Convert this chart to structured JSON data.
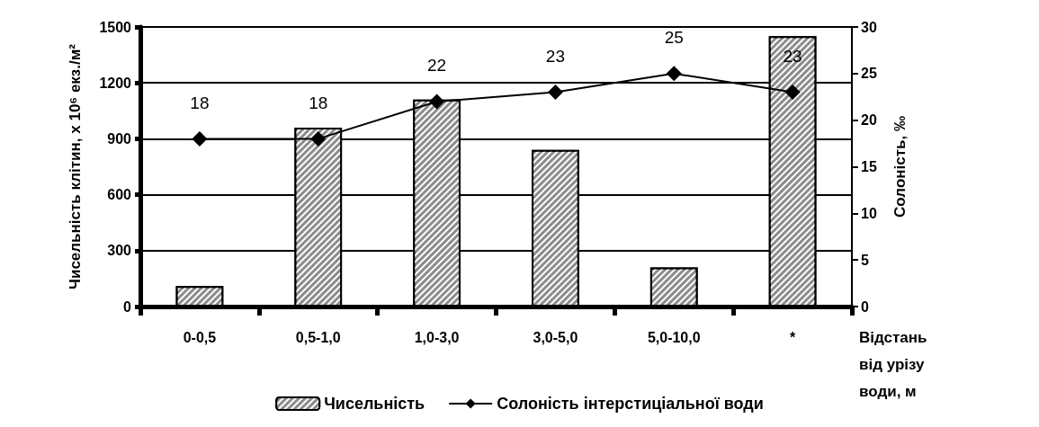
{
  "chart_data": {
    "type": "bar",
    "categories": [
      "0-0,5",
      "0,5-1,0",
      "1,0-3,0",
      "3,0-5,0",
      "5,0-10,0",
      "*"
    ],
    "xlabel": "Відстань від урізу води, м",
    "ylabel": "Чисельність клітин, х 10⁶ екз./м²",
    "y2label": "Солоність, ‰",
    "series": [
      {
        "name": "Чисельність",
        "color": "#8c8c8c",
        "values": [
          110,
          960,
          1110,
          840,
          210,
          1450
        ]
      },
      {
        "name": "Солоність інтерстиціальної води",
        "type": "line",
        "axis": "y2",
        "color": "#000000",
        "marker": "diamond",
        "data_labels": true,
        "values": [
          18,
          18,
          22,
          23,
          25,
          23
        ]
      }
    ],
    "ylim": [
      0,
      1500
    ],
    "yticks": [
      0,
      300,
      600,
      900,
      1200,
      1500
    ],
    "y2lim": [
      0,
      30
    ],
    "y2ticks": [
      0,
      5,
      10,
      15,
      20,
      25,
      30
    ],
    "grid": "y",
    "legend": "bottom"
  }
}
